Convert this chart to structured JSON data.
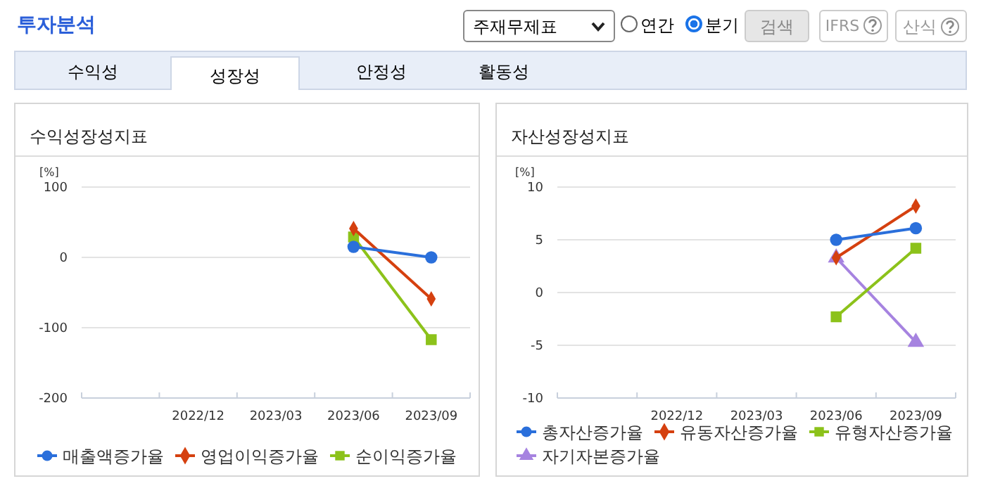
{
  "chart_data": [
    {
      "type": "other",
      "annotations": [
        "투자분석",
        "주재무제표",
        "연간",
        "분기",
        "검색",
        "IFRS",
        "산식",
        "수익성",
        "성장성",
        "안정성",
        "활동성"
      ]
    },
    {
      "type": "line",
      "title": "수익성장성지표",
      "ylabel": "[%]",
      "categories": [
        null,
        "2022/12",
        "2023/03",
        "2023/06",
        "2023/09"
      ],
      "ylim": [
        -200,
        100
      ],
      "yticks": [
        -200,
        -100,
        0,
        100
      ],
      "grid": "y",
      "legend": "bottom",
      "series": [
        {
          "name": "매출액증가율",
          "color": "#2a6fdb",
          "marker": "circle",
          "values": [
            null,
            null,
            null,
            15,
            0
          ]
        },
        {
          "name": "영업이익증가율",
          "color": "#d5400f",
          "marker": "diamond",
          "values": [
            null,
            null,
            null,
            41,
            -59
          ]
        },
        {
          "name": "순이익증가율",
          "color": "#8cc21a",
          "marker": "square",
          "values": [
            null,
            null,
            null,
            29,
            -117
          ]
        }
      ]
    },
    {
      "type": "line",
      "title": "자산성장성지표",
      "ylabel": "[%]",
      "categories": [
        null,
        "2022/12",
        "2023/03",
        "2023/06",
        "2023/09"
      ],
      "ylim": [
        -10,
        10
      ],
      "yticks": [
        -10,
        -5,
        0,
        5,
        10
      ],
      "grid": "y",
      "legend": "bottom",
      "series": [
        {
          "name": "총자산증가율",
          "color": "#2a6fdb",
          "marker": "circle",
          "values": [
            null,
            null,
            null,
            5.0,
            6.1
          ]
        },
        {
          "name": "유동자산증가율",
          "color": "#d5400f",
          "marker": "diamond",
          "values": [
            null,
            null,
            null,
            3.3,
            8.2
          ]
        },
        {
          "name": "유형자산증가율",
          "color": "#8cc21a",
          "marker": "square",
          "values": [
            null,
            null,
            null,
            -2.3,
            4.2
          ]
        },
        {
          "name": "자기자본증가율",
          "color": "#a683e0",
          "marker": "triangle",
          "values": [
            null,
            null,
            null,
            3.3,
            -4.7
          ]
        }
      ]
    }
  ]
}
